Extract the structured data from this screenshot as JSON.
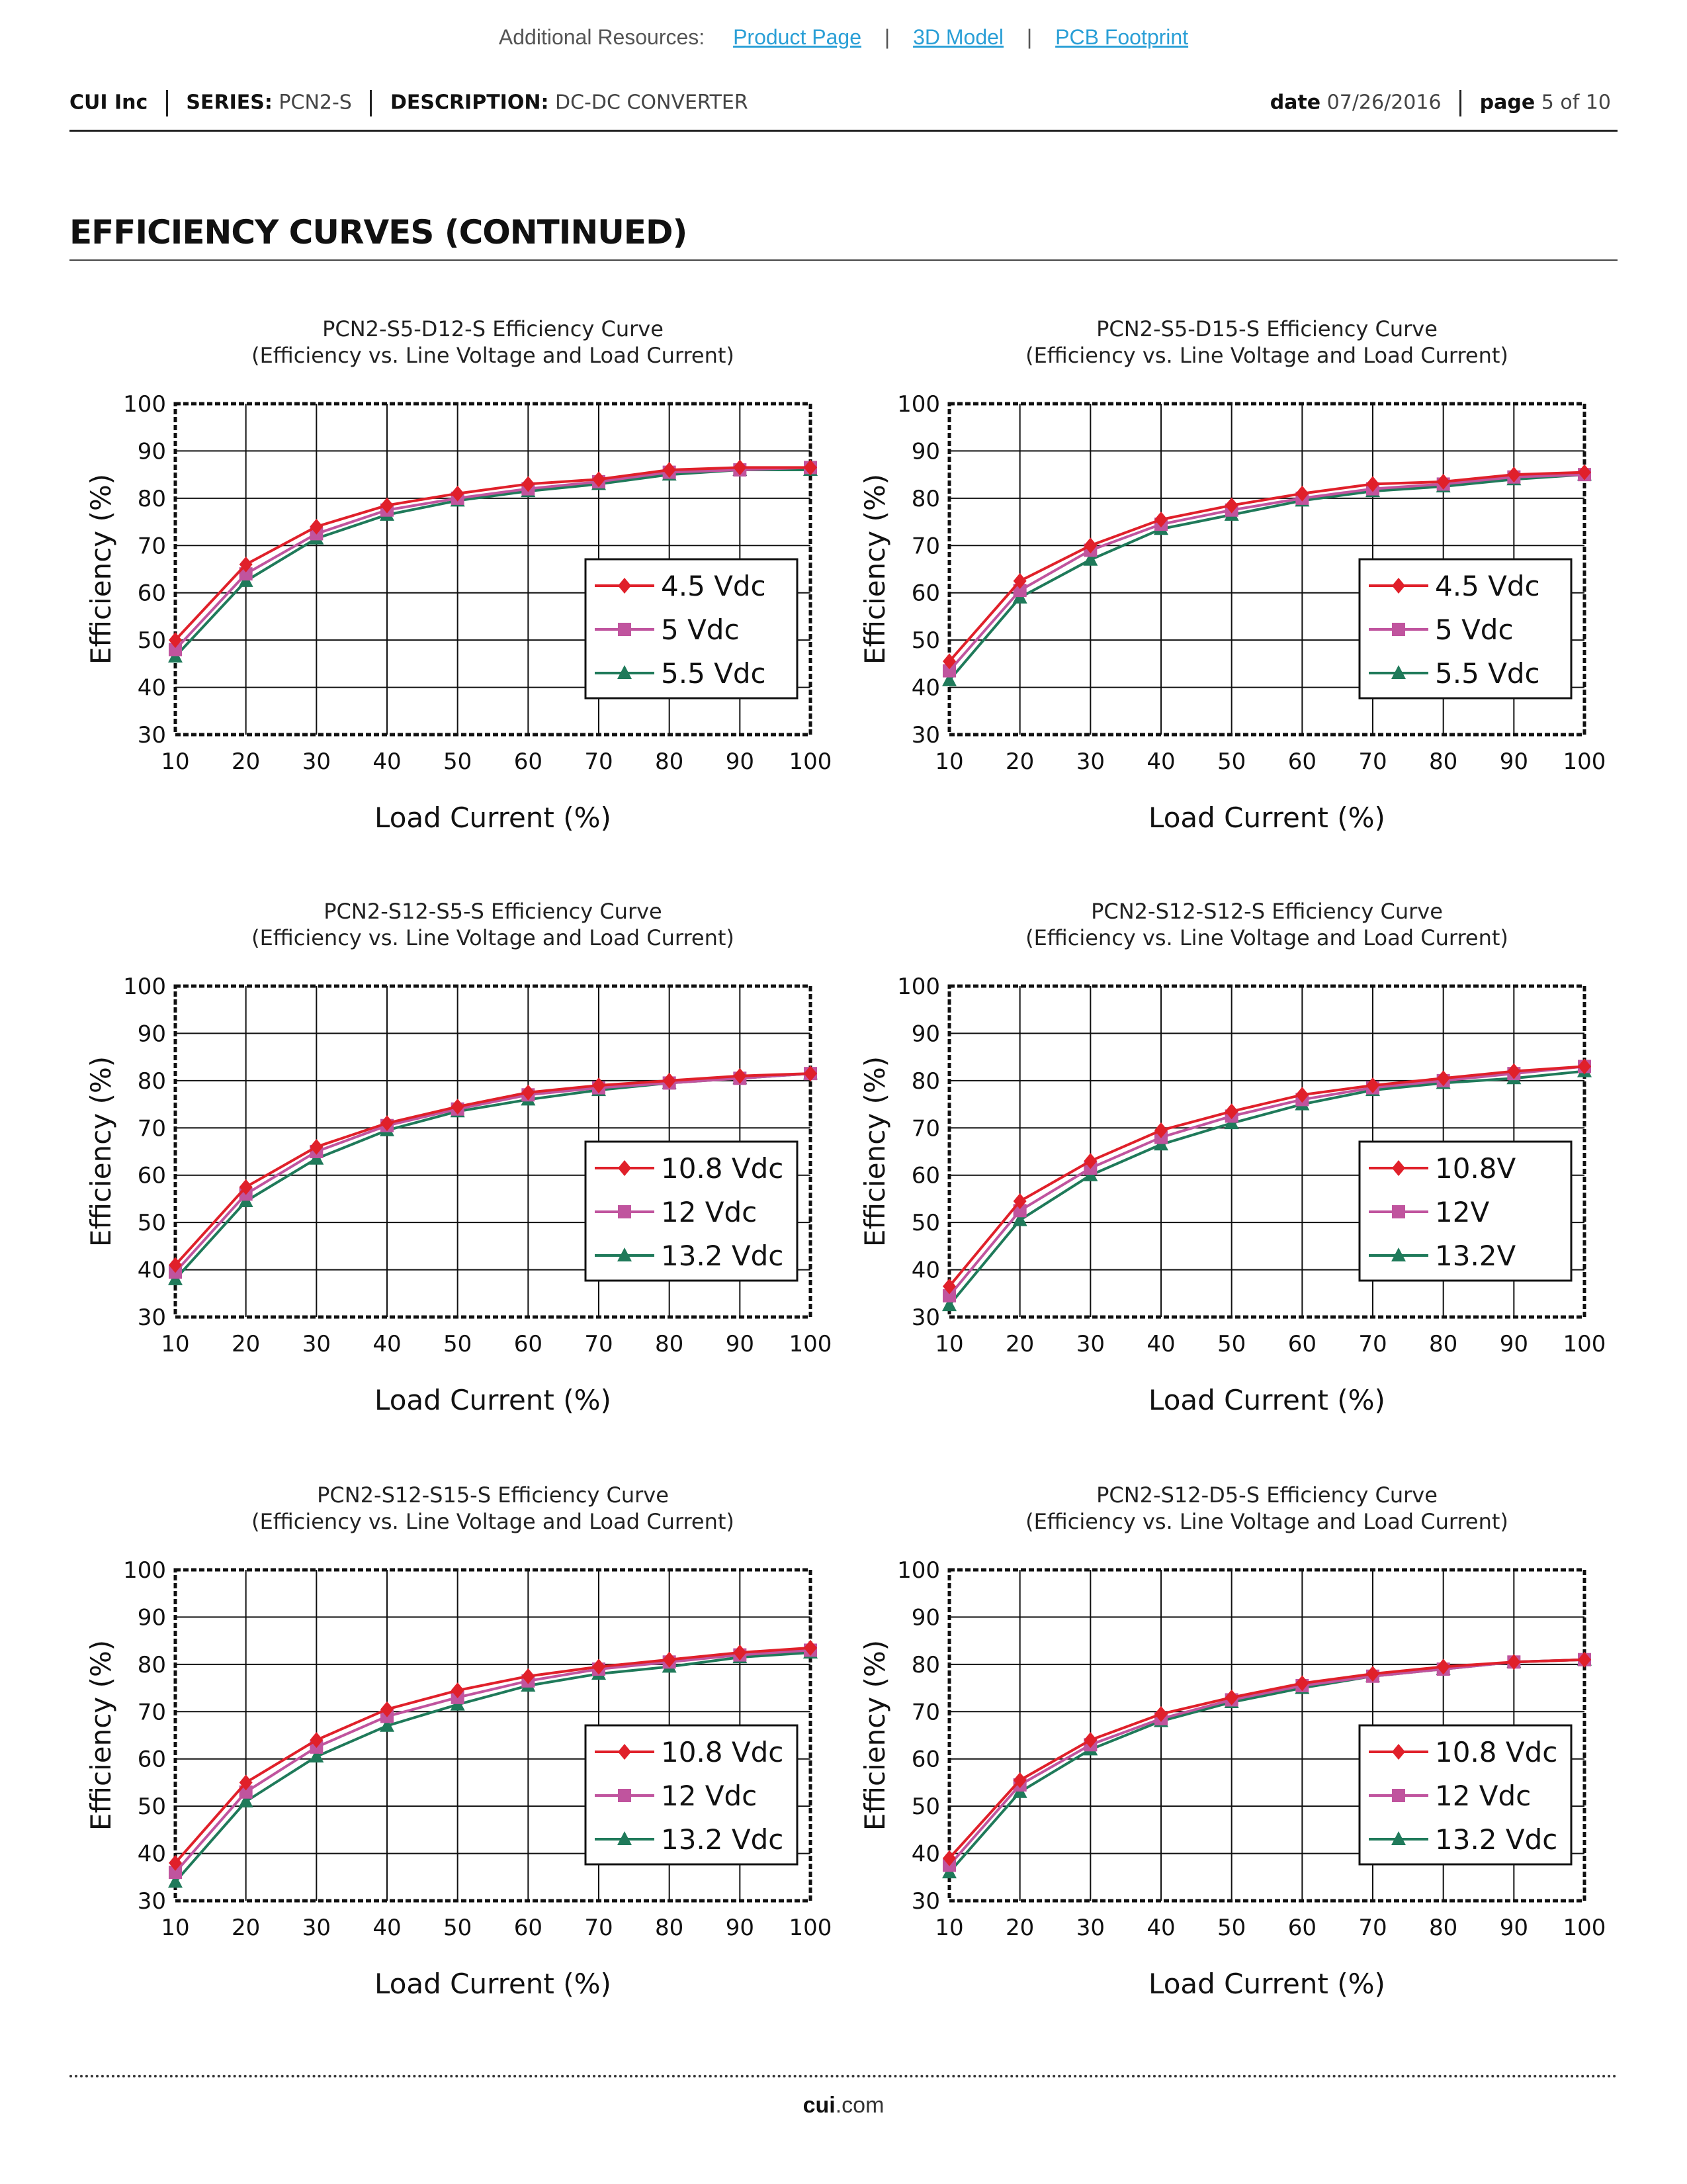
{
  "resources": {
    "label": "Additional Resources:",
    "links": [
      "Product Page",
      "3D Model",
      "PCB Footprint"
    ],
    "separator": "|"
  },
  "header": {
    "company": "CUI Inc",
    "series_label": "SERIES:",
    "series_value": "PCN2-S",
    "description_label": "DESCRIPTION:",
    "description_value": "DC-DC CONVERTER",
    "date_label": "date",
    "date_value": "07/26/2016",
    "page_label": "page",
    "page_value": "5 of 10"
  },
  "section_title": "EFFICIENCY CURVES (CONTINUED)",
  "footer": {
    "brand": "cui",
    "suffix": ".com"
  },
  "colors": {
    "red": "#e0202a",
    "magenta": "#c0549e",
    "green": "#1f7a5a",
    "link": "#2a9fd6"
  },
  "chart_data": [
    {
      "type": "line",
      "title": "PCN2-S5-D12-S Efficiency Curve",
      "subtitle": "(Efficiency vs. Line Voltage and Load Current)",
      "xlabel": "Load Current (%)",
      "ylabel": "Efficiency (%)",
      "xlim": [
        10,
        100
      ],
      "ylim": [
        30,
        100
      ],
      "x": [
        10,
        20,
        30,
        40,
        50,
        60,
        70,
        80,
        90,
        100
      ],
      "series": [
        {
          "name": "4.5 Vdc",
          "marker": "diamond",
          "color": "#e0202a",
          "values": [
            50,
            66,
            74,
            78.5,
            81,
            83,
            84,
            86,
            86.5,
            86.5
          ]
        },
        {
          "name": "5 Vdc",
          "marker": "square",
          "color": "#c0549e",
          "values": [
            48,
            64,
            72.5,
            77.5,
            80,
            82,
            83.5,
            85.5,
            86,
            86.5
          ]
        },
        {
          "name": "5.5 Vdc",
          "marker": "triangle",
          "color": "#1f7a5a",
          "values": [
            46.5,
            62.5,
            71.5,
            76.5,
            79.5,
            81.5,
            83,
            85,
            86,
            86
          ]
        }
      ]
    },
    {
      "type": "line",
      "title": "PCN2-S5-D15-S Efficiency Curve",
      "subtitle": "(Efficiency vs. Line Voltage and Load Current)",
      "xlabel": "Load Current (%)",
      "ylabel": "Efficiency (%)",
      "xlim": [
        10,
        100
      ],
      "ylim": [
        30,
        100
      ],
      "x": [
        10,
        20,
        30,
        40,
        50,
        60,
        70,
        80,
        90,
        100
      ],
      "series": [
        {
          "name": "4.5 Vdc",
          "marker": "diamond",
          "color": "#e0202a",
          "values": [
            45.5,
            62.5,
            70,
            75.5,
            78.5,
            81,
            83,
            83.5,
            85,
            85.5
          ]
        },
        {
          "name": "5  Vdc",
          "marker": "square",
          "color": "#c0549e",
          "values": [
            43.5,
            60.5,
            69,
            74.5,
            77.5,
            80,
            82,
            83,
            84.5,
            85
          ]
        },
        {
          "name": "5.5 Vdc",
          "marker": "triangle",
          "color": "#1f7a5a",
          "values": [
            41.5,
            59,
            67,
            73.5,
            76.5,
            79.5,
            81.5,
            82.5,
            84,
            85
          ]
        }
      ]
    },
    {
      "type": "line",
      "title": "PCN2-S12-S5-S Efficiency Curve",
      "subtitle": "(Efficiency vs. Line Voltage and Load Current)",
      "xlabel": "Load Current (%)",
      "ylabel": "Efficiency (%)",
      "xlim": [
        10,
        100
      ],
      "ylim": [
        30,
        100
      ],
      "x": [
        10,
        20,
        30,
        40,
        50,
        60,
        70,
        80,
        90,
        100
      ],
      "series": [
        {
          "name": "10.8 Vdc",
          "marker": "diamond",
          "color": "#e0202a",
          "values": [
            41,
            57.5,
            66,
            71,
            74.5,
            77.5,
            79,
            80,
            81,
            81.5
          ]
        },
        {
          "name": "12 Vdc",
          "marker": "square",
          "color": "#c0549e",
          "values": [
            39.5,
            56,
            65,
            70.5,
            74,
            77,
            78.5,
            79.5,
            80.5,
            81.5
          ]
        },
        {
          "name": "13.2 Vdc",
          "marker": "triangle",
          "color": "#1f7a5a",
          "values": [
            38,
            54.5,
            63.5,
            69.5,
            73.5,
            76,
            78,
            79.5,
            80.5,
            81.5
          ]
        }
      ]
    },
    {
      "type": "line",
      "title": "PCN2-S12-S12-S Efficiency Curve",
      "subtitle": "(Efficiency vs. Line Voltage and Load Current)",
      "xlabel": "Load Current (%)",
      "ylabel": "Efficiency (%)",
      "xlim": [
        10,
        100
      ],
      "ylim": [
        30,
        100
      ],
      "x": [
        10,
        20,
        30,
        40,
        50,
        60,
        70,
        80,
        90,
        100
      ],
      "series": [
        {
          "name": "10.8V",
          "marker": "diamond",
          "color": "#e0202a",
          "values": [
            36.5,
            54.5,
            63,
            69.5,
            73.5,
            77,
            79,
            80.5,
            82,
            83
          ]
        },
        {
          "name": "12V",
          "marker": "square",
          "color": "#c0549e",
          "values": [
            34.5,
            52.5,
            61.5,
            68,
            72.5,
            76,
            78.5,
            80,
            81.5,
            83
          ]
        },
        {
          "name": "13.2V",
          "marker": "triangle",
          "color": "#1f7a5a",
          "values": [
            32.5,
            50.5,
            60,
            66.5,
            71,
            75,
            78,
            79.5,
            80.5,
            82
          ]
        }
      ]
    },
    {
      "type": "line",
      "title": "PCN2-S12-S15-S Efficiency Curve",
      "subtitle": "(Efficiency vs. Line Voltage and Load Current)",
      "xlabel": "Load Current (%)",
      "ylabel": "Efficiency (%)",
      "xlim": [
        10,
        100
      ],
      "ylim": [
        30,
        100
      ],
      "x": [
        10,
        20,
        30,
        40,
        50,
        60,
        70,
        80,
        90,
        100
      ],
      "series": [
        {
          "name": "10.8 Vdc",
          "marker": "diamond",
          "color": "#e0202a",
          "values": [
            38,
            55,
            64,
            70.5,
            74.5,
            77.5,
            79.5,
            81,
            82.5,
            83.5
          ]
        },
        {
          "name": "12 Vdc",
          "marker": "square",
          "color": "#c0549e",
          "values": [
            36,
            53,
            62.5,
            69,
            73,
            76.5,
            79,
            80.5,
            82,
            83
          ]
        },
        {
          "name": "13.2 Vdc",
          "marker": "triangle",
          "color": "#1f7a5a",
          "values": [
            34,
            51,
            60.5,
            67,
            71.5,
            75.5,
            78,
            79.5,
            81.5,
            82.5
          ]
        }
      ]
    },
    {
      "type": "line",
      "title": "PCN2-S12-D5-S Efficiency Curve",
      "subtitle": "(Efficiency vs. Line Voltage and Load Current)",
      "xlabel": "Load Current (%)",
      "ylabel": "Efficiency (%)",
      "xlim": [
        10,
        100
      ],
      "ylim": [
        30,
        100
      ],
      "x": [
        10,
        20,
        30,
        40,
        50,
        60,
        70,
        80,
        90,
        100
      ],
      "series": [
        {
          "name": "10.8  Vdc",
          "marker": "diamond",
          "color": "#e0202a",
          "values": [
            39,
            55.5,
            64,
            69.5,
            73,
            76,
            78,
            79.5,
            80.5,
            81
          ]
        },
        {
          "name": "12 Vdc",
          "marker": "square",
          "color": "#c0549e",
          "values": [
            37.5,
            54.5,
            63,
            68.5,
            72.5,
            75.5,
            77.5,
            79,
            80.5,
            81
          ]
        },
        {
          "name": "13.2  Vdc",
          "marker": "triangle",
          "color": "#1f7a5a",
          "values": [
            36,
            53,
            62,
            68,
            72,
            75,
            77.5,
            79,
            80.5,
            81
          ]
        }
      ]
    }
  ]
}
